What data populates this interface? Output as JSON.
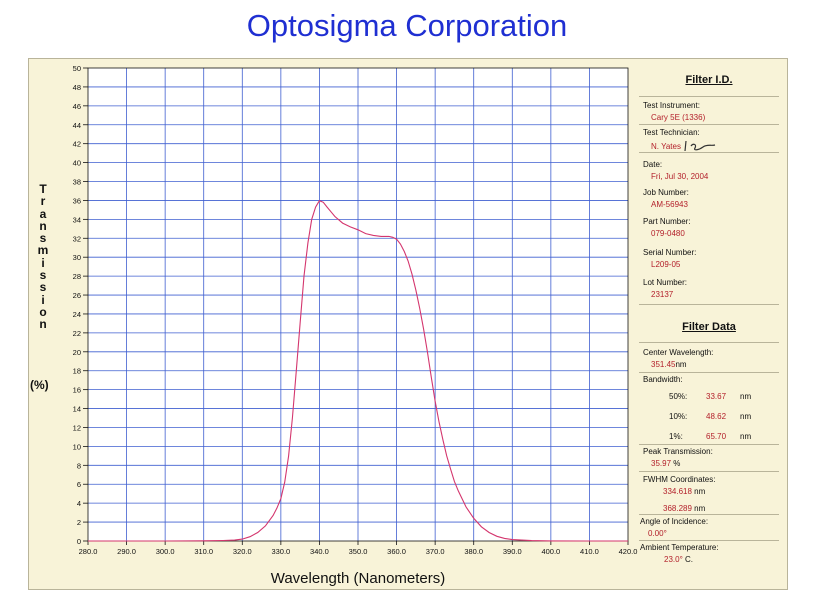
{
  "header": {
    "company": "Optosigma Corporation"
  },
  "chart_data": {
    "type": "line",
    "xlabel": "Wavelength (Nanometers)",
    "ylabel_letters": [
      "T",
      "r",
      "a",
      "n",
      "s",
      "m",
      "i",
      "s",
      "s",
      "i",
      "o",
      "n"
    ],
    "ylabel_unit": "(%)",
    "xlim": [
      280,
      420
    ],
    "ylim": [
      0,
      50
    ],
    "x_ticks": [
      "280.0",
      "290.0",
      "300.0",
      "310.0",
      "320.0",
      "330.0",
      "340.0",
      "350.0",
      "360.0",
      "370.0",
      "380.0",
      "390.0",
      "400.0",
      "410.0",
      "420.0"
    ],
    "y_ticks": [
      "0",
      "2",
      "4",
      "6",
      "8",
      "10",
      "12",
      "14",
      "16",
      "18",
      "20",
      "22",
      "24",
      "26",
      "28",
      "30",
      "32",
      "34",
      "36",
      "38",
      "40",
      "42",
      "44",
      "46",
      "48",
      "50"
    ],
    "grid": true,
    "colors": {
      "line": "#d4366e",
      "grid": "#3f5fd0",
      "axis": "#111111"
    },
    "series": [
      {
        "x": [
          280,
          300,
          310,
          315,
          318,
          320,
          322,
          324,
          326,
          328,
          329,
          330,
          331,
          332,
          333,
          334,
          335,
          336,
          337,
          338,
          339,
          340,
          341,
          342,
          343,
          344,
          346,
          348,
          350,
          352,
          354,
          356,
          358,
          359,
          360,
          361,
          362,
          363,
          364,
          365,
          366,
          367,
          368,
          369,
          370,
          371,
          372,
          373,
          374,
          375,
          376,
          378,
          380,
          382,
          384,
          386,
          388,
          390,
          395,
          400,
          410,
          420
        ],
        "y": [
          0,
          0,
          0.02,
          0.05,
          0.1,
          0.2,
          0.45,
          0.9,
          1.6,
          2.7,
          3.5,
          4.5,
          6.2,
          9,
          13,
          18,
          23,
          28,
          31.5,
          34,
          35.3,
          35.97,
          35.8,
          35.3,
          34.8,
          34.3,
          33.6,
          33.2,
          32.9,
          32.5,
          32.3,
          32.2,
          32.2,
          32.1,
          31.9,
          31.4,
          30.6,
          29.6,
          28.2,
          26.5,
          24.6,
          22.4,
          20,
          17.3,
          14.8,
          12.6,
          10.7,
          9,
          7.6,
          6.3,
          5.3,
          3.6,
          2.4,
          1.5,
          0.9,
          0.5,
          0.28,
          0.15,
          0.04,
          0.01,
          0,
          0
        ]
      }
    ]
  },
  "filter_id": {
    "title": "Filter I.D.",
    "test_instrument_label": "Test Instrument:",
    "test_instrument": "Cary 5E (1336)",
    "test_technician_label": "Test Technician:",
    "test_technician": "N. Yates",
    "date_label": "Date:",
    "date": "Fri, Jul 30, 2004",
    "job_number_label": "Job Number:",
    "job_number": "AM-56943",
    "part_number_label": "Part Number:",
    "part_number": "079-0480",
    "serial_number_label": "Serial Number:",
    "serial_number": "L209-05",
    "lot_number_label": "Lot Number:",
    "lot_number": "23137"
  },
  "filter_data": {
    "title": "Filter Data",
    "center_wavelength_label": "Center Wavelength:",
    "center_wavelength": "351.45",
    "center_wavelength_unit": "nm",
    "bandwidth_label": "Bandwidth:",
    "bw50_label": "50%:",
    "bw50": "33.67",
    "bw10_label": "10%:",
    "bw10": "48.62",
    "bw1_label": "1%:",
    "bw1": "65.70",
    "bw_unit": "nm",
    "peak_transmission_label": "Peak Transmission:",
    "peak_transmission": "35.97",
    "peak_unit": "%",
    "fwhm_label": "FWHM Coordinates:",
    "fwhm_low": "334.618",
    "fwhm_high": "368.289",
    "fwhm_unit": "nm",
    "angle_label": "Angle of Incidence:",
    "angle": "0.00°",
    "ambient_label": "Ambient Temperature:",
    "ambient": "23.0°",
    "ambient_unit": "C."
  }
}
